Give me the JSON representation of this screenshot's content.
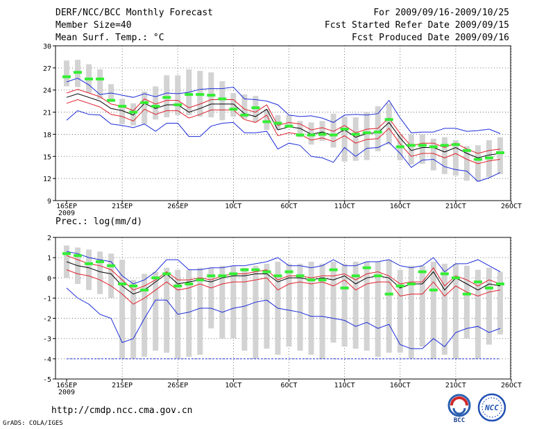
{
  "header": {
    "left": [
      "DERF/NCC/BCC Monthly Forecast",
      "Member Size=40",
      "Mean Surf. Temp.: °C"
    ],
    "right": [
      "For 2009/09/16-2009/10/25",
      "Fcst Started Refer Date 2009/09/15",
      "Fcst Produced Date 2009/09/16"
    ]
  },
  "footer": {
    "url": "http://cmdp.ncc.cma.gov.cn",
    "grads": "GrADS: COLA/IGES",
    "logo_bcc": "BCC",
    "logo_ncc": "NCC"
  },
  "colors": {
    "box": "#d3d3d3",
    "median": "#000000",
    "inner": "#e0202a",
    "outer": "#1c2cd8",
    "mean": "#33ee33"
  },
  "chart_data": [
    {
      "type": "box",
      "title": "Mean Surf. Temp.: °C",
      "x_labels": [
        "16SEP",
        "21SEP",
        "26SEP",
        "1OCT",
        "6OCT",
        "11OCT",
        "16OCT",
        "21OCT",
        "26OCT"
      ],
      "x_sublabel": "2009",
      "ylim": [
        9,
        30
      ],
      "yticks": [
        9,
        12,
        15,
        18,
        21,
        24,
        27,
        30
      ],
      "n_days": 40,
      "box_low": [
        24.5,
        24.4,
        23.6,
        22.8,
        22.4,
        19.4,
        19.2,
        19.4,
        20.0,
        20.3,
        20.6,
        20.6,
        20.4,
        20.3,
        19.9,
        20.4,
        20.1,
        19.7,
        18.6,
        18.6,
        18.9,
        17.6,
        16.6,
        17.1,
        16.2,
        14.3,
        14.4,
        14.5,
        15.7,
        16.6,
        14.5,
        13.9,
        14.0,
        13.1,
        12.6,
        12.4,
        11.7,
        11.6,
        12.2,
        12.6
      ],
      "box_high": [
        28.0,
        28.1,
        27.5,
        26.8,
        24.8,
        22.8,
        22.2,
        23.8,
        24.5,
        26.0,
        26.0,
        26.8,
        26.6,
        26.4,
        25.2,
        23.6,
        23.4,
        23.2,
        21.4,
        20.6,
        20.6,
        19.8,
        19.6,
        19.8,
        20.8,
        20.4,
        20.3,
        21.0,
        21.8,
        22.2,
        18.0,
        18.0,
        18.0,
        17.4,
        17.6,
        17.2,
        16.4,
        16.5,
        17.2,
        17.6
      ],
      "median": [
        23.0,
        23.5,
        23.0,
        22.5,
        21.5,
        21.2,
        20.6,
        22.2,
        21.5,
        22.0,
        22.0,
        21.0,
        21.5,
        22.1,
        22.1,
        22.1,
        20.8,
        20.4,
        21.4,
        18.6,
        19.0,
        18.8,
        18.0,
        18.3,
        17.8,
        18.6,
        17.6,
        18.1,
        18.2,
        19.6,
        17.5,
        15.8,
        16.2,
        16.2,
        15.6,
        16.2,
        15.4,
        14.8,
        15.2,
        15.4
      ],
      "inner_high": [
        23.6,
        24.1,
        23.6,
        23.1,
        22.1,
        21.8,
        21.2,
        22.8,
        22.1,
        22.6,
        22.6,
        21.6,
        22.1,
        22.7,
        22.7,
        22.7,
        21.4,
        21.0,
        22.0,
        19.2,
        19.6,
        19.4,
        18.6,
        18.9,
        18.4,
        19.2,
        18.2,
        18.7,
        18.8,
        20.2,
        18.1,
        16.4,
        16.8,
        16.8,
        16.2,
        16.8,
        16.0,
        15.4,
        15.8,
        16.0
      ],
      "inner_low": [
        22.2,
        22.7,
        22.2,
        21.7,
        20.7,
        20.4,
        19.8,
        21.4,
        20.7,
        21.2,
        21.2,
        20.2,
        20.7,
        21.3,
        21.3,
        21.3,
        20.0,
        19.6,
        20.6,
        17.8,
        18.2,
        18.0,
        17.2,
        17.5,
        17.0,
        17.8,
        16.8,
        17.3,
        17.4,
        18.8,
        16.7,
        15.0,
        15.4,
        15.4,
        14.8,
        15.4,
        14.6,
        14.0,
        14.4,
        14.6
      ],
      "outer_high": [
        25.1,
        25.6,
        24.7,
        23.4,
        23.6,
        23.3,
        23.0,
        23.5,
        23.1,
        23.6,
        23.5,
        23.7,
        24.1,
        24.2,
        24.2,
        24.4,
        22.8,
        22.7,
        22.5,
        22.0,
        20.6,
        20.4,
        20.5,
        20.2,
        19.6,
        20.6,
        20.7,
        20.6,
        20.8,
        22.6,
        20.2,
        18.2,
        18.3,
        18.3,
        18.8,
        18.8,
        18.4,
        18.5,
        18.7,
        18.1
      ],
      "outer_low": [
        19.9,
        21.2,
        20.7,
        20.6,
        19.4,
        19.2,
        18.9,
        19.4,
        18.4,
        19.5,
        19.5,
        17.7,
        17.7,
        19.1,
        19.5,
        19.6,
        18.2,
        18.2,
        18.4,
        16.0,
        16.8,
        16.5,
        15.0,
        14.8,
        14.2,
        16.2,
        15.0,
        16.1,
        16.2,
        16.9,
        15.4,
        13.5,
        14.5,
        14.6,
        13.6,
        13.2,
        13.0,
        11.6,
        12.1,
        12.8
      ],
      "mean": [
        25.8,
        26.4,
        25.5,
        25.5,
        22.6,
        21.8,
        21.0,
        22.3,
        21.8,
        23.0,
        22.0,
        23.4,
        23.4,
        23.3,
        22.8,
        21.4,
        20.6,
        21.6,
        19.7,
        19.5,
        19.1,
        17.9,
        17.9,
        18.0,
        17.9,
        18.7,
        18.0,
        18.2,
        18.3,
        20.0,
        16.3,
        16.5,
        16.5,
        16.3,
        16.5,
        16.6,
        15.8,
        14.6,
        14.8,
        15.5
      ]
    },
    {
      "type": "box",
      "title": "Prec.: log(mm/d)",
      "x_labels": [
        "16SEP",
        "21SEP",
        "26SEP",
        "1OCT",
        "6OCT",
        "11OCT",
        "16OCT",
        "21OCT",
        "26OCT"
      ],
      "x_sublabel": "2009",
      "ylim": [
        -5,
        2
      ],
      "yticks": [
        -5,
        -4,
        -3,
        -2,
        -1,
        0,
        1,
        2
      ],
      "n_days": 40,
      "box_low": [
        0.0,
        -0.3,
        -0.6,
        -0.8,
        -1.0,
        -4.0,
        -4.0,
        -3.9,
        -3.6,
        -3.7,
        -4.0,
        -3.9,
        -3.8,
        -2.5,
        -3.0,
        -3.0,
        -3.6,
        -4.0,
        -3.5,
        -3.8,
        -3.4,
        -3.6,
        -3.8,
        -4.0,
        -3.2,
        -3.4,
        -3.5,
        -3.6,
        -3.9,
        -3.7,
        -3.7,
        -4.0,
        -3.4,
        -4.0,
        -3.8,
        -4.0,
        -3.0,
        -4.0,
        -3.3,
        -2.8
      ],
      "box_high": [
        1.6,
        1.5,
        1.4,
        1.3,
        1.2,
        0.9,
        -0.1,
        0.2,
        0.3,
        0.5,
        0.4,
        0.4,
        0.5,
        0.5,
        0.6,
        0.6,
        0.5,
        0.6,
        0.7,
        0.8,
        0.7,
        0.7,
        0.8,
        0.7,
        0.8,
        0.7,
        0.8,
        0.8,
        0.8,
        0.9,
        0.4,
        0.6,
        0.6,
        0.8,
        0.7,
        0.7,
        0.6,
        0.4,
        0.5,
        0.3
      ],
      "median": [
        0.8,
        0.6,
        0.5,
        0.3,
        0.2,
        -0.4,
        -0.8,
        -0.6,
        -0.2,
        0.2,
        -0.3,
        -0.2,
        -0.1,
        -0.2,
        0.0,
        0.1,
        0.1,
        0.2,
        0.2,
        -0.2,
        0.0,
        0.0,
        -0.1,
        0.0,
        -0.1,
        0.1,
        -0.3,
        0.0,
        0.1,
        0.0,
        -0.5,
        -0.3,
        -0.3,
        0.3,
        -0.6,
        0.0,
        -0.3,
        -0.6,
        -0.3,
        -0.4
      ],
      "inner_high": [
        1.1,
        0.9,
        0.7,
        0.6,
        0.4,
        -0.1,
        -0.6,
        -0.4,
        -0.1,
        0.3,
        -0.1,
        -0.1,
        0.0,
        -0.1,
        0.1,
        0.2,
        0.2,
        0.3,
        0.4,
        -0.1,
        0.1,
        0.1,
        0.0,
        0.1,
        0.1,
        0.2,
        -0.1,
        0.2,
        0.3,
        0.1,
        -0.3,
        -0.2,
        -0.2,
        0.5,
        -0.4,
        0.1,
        -0.1,
        -0.4,
        -0.1,
        -0.3
      ],
      "inner_low": [
        0.4,
        0.2,
        0.1,
        -0.1,
        -0.4,
        -0.8,
        -1.3,
        -1.0,
        -0.6,
        -0.2,
        -0.6,
        -0.5,
        -0.3,
        -0.5,
        -0.3,
        -0.2,
        -0.2,
        -0.1,
        0.0,
        -0.6,
        -0.3,
        -0.2,
        -0.3,
        -0.2,
        -0.4,
        -0.1,
        -0.6,
        -0.3,
        -0.2,
        -0.2,
        -0.9,
        -0.8,
        -0.8,
        -0.2,
        -0.9,
        -0.4,
        -0.7,
        -0.9,
        -0.7,
        -0.6
      ],
      "outer_high": [
        1.3,
        1.2,
        1.0,
        0.9,
        0.8,
        0.1,
        -0.3,
        -0.1,
        0.3,
        0.9,
        0.9,
        0.4,
        0.4,
        0.5,
        0.5,
        0.6,
        0.6,
        0.7,
        0.8,
        1.0,
        0.6,
        0.6,
        0.5,
        0.6,
        0.9,
        0.6,
        0.6,
        0.8,
        0.8,
        0.9,
        0.6,
        0.5,
        0.6,
        1.0,
        0.3,
        0.7,
        0.7,
        0.9,
        0.6,
        0.3
      ],
      "outer_low": [
        -0.5,
        -1.0,
        -1.3,
        -1.8,
        -2.0,
        -3.2,
        -3.0,
        -2.0,
        -1.1,
        -1.1,
        -1.8,
        -1.7,
        -1.5,
        -1.5,
        -1.7,
        -1.5,
        -1.4,
        -1.2,
        -1.1,
        -1.5,
        -1.6,
        -1.7,
        -1.9,
        -1.9,
        -2.0,
        -2.1,
        -2.4,
        -2.2,
        -2.5,
        -2.3,
        -3.3,
        -3.5,
        -3.5,
        -3.0,
        -3.4,
        -2.7,
        -2.5,
        -2.4,
        -2.7,
        -2.5
      ],
      "mean": [
        1.2,
        1.1,
        0.7,
        0.8,
        0.6,
        -0.3,
        -0.4,
        -0.6,
        0.0,
        0.2,
        -0.4,
        -0.3,
        -0.1,
        0.1,
        0.1,
        0.2,
        0.4,
        0.4,
        0.3,
        0.1,
        0.3,
        0.1,
        -0.1,
        -0.1,
        0.4,
        -0.5,
        0.1,
        0.5,
        0.1,
        -0.8,
        -0.4,
        -0.3,
        0.3,
        -0.6,
        0.2,
        0.0,
        -0.8,
        -0.2,
        -0.5,
        -0.3
      ]
    }
  ]
}
